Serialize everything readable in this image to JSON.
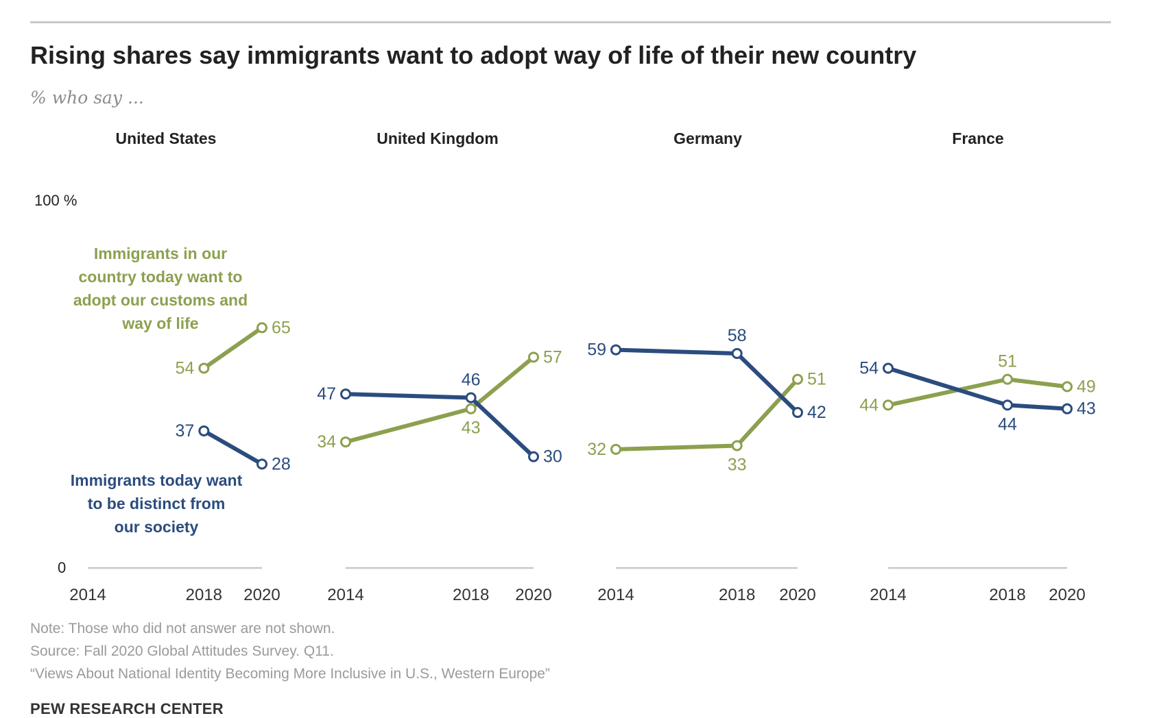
{
  "header": {
    "title": "Rising shares say immigrants want to adopt way of life of their new country",
    "subtitle": "% who say ..."
  },
  "footer": {
    "note": "Note: Those who did not answer are not shown.",
    "source": "Source: Fall 2020 Global Attitudes Survey. Q11.",
    "report": "“Views About National Identity Becoming More Inclusive in U.S., Western Europe”",
    "brand": "PEW RESEARCH CENTER"
  },
  "colors": {
    "adopt": "#8ca04f",
    "distinct": "#2b4c7e",
    "axis": "#c8c8c8",
    "text": "#222222"
  },
  "chart_data": {
    "type": "line",
    "y_max_label": "100 %",
    "y_min_label": "0",
    "ylim": [
      0,
      100
    ],
    "series_labels": {
      "adopt": "Immigrants in our country today want to adopt our customs and way of life",
      "distinct": "Immigrants today want to be distinct from our society"
    },
    "panels": [
      {
        "country": "United States",
        "x": [
          2018,
          2020
        ],
        "x_ticks": [
          "2014",
          "2018",
          "2020"
        ],
        "adopt": [
          54,
          65
        ],
        "distinct": [
          37,
          28
        ]
      },
      {
        "country": "United Kingdom",
        "x": [
          2014,
          2018,
          2020
        ],
        "x_ticks": [
          "2014",
          "2018",
          "2020"
        ],
        "adopt": [
          34,
          43,
          57
        ],
        "distinct": [
          47,
          46,
          30
        ]
      },
      {
        "country": "Germany",
        "x": [
          2014,
          2018,
          2020
        ],
        "x_ticks": [
          "2014",
          "2018",
          "2020"
        ],
        "adopt": [
          32,
          33,
          51
        ],
        "distinct": [
          59,
          58,
          42
        ]
      },
      {
        "country": "France",
        "x": [
          2014,
          2018,
          2020
        ],
        "x_ticks": [
          "2014",
          "2018",
          "2020"
        ],
        "adopt": [
          44,
          51,
          49
        ],
        "distinct": [
          54,
          44,
          43
        ]
      }
    ]
  }
}
